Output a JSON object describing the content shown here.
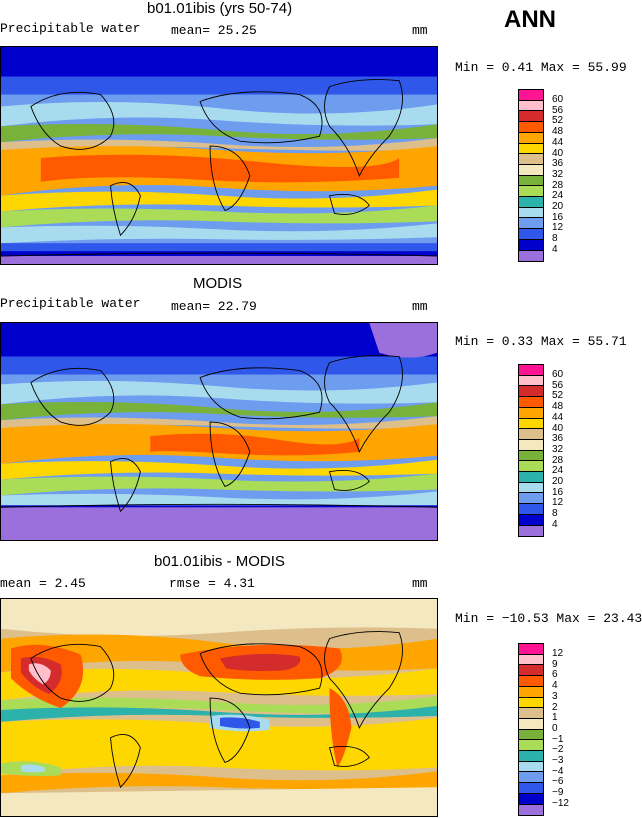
{
  "season": "ANN",
  "colors": {
    "c_lt4": "#9b6fdc",
    "c4_8": "#0000cc",
    "c8_12": "#2f57ea",
    "c12_16": "#6e9df0",
    "c16_20": "#a9dbef",
    "c20_24": "#2cb2aa",
    "c24_28": "#aadc57",
    "c28_32": "#78b23a",
    "c32_36": "#f3e8bf",
    "c36_40": "#ddbf8c",
    "c40_44": "#ffd700",
    "c44_48": "#ffa500",
    "c48_52": "#ff5a00",
    "c52_56": "#d42c2c",
    "c56_60": "#ffc0cb",
    "c_gt60": "#ff1493"
  },
  "panels": [
    {
      "title": "b01.01ibis (yrs 50-74)",
      "left_label": "Precipitable water",
      "center_label": "mean=  25.25",
      "units": "mm",
      "minmax": "Min =    0.41 Max =   55.99",
      "levels": [
        "60",
        "56",
        "52",
        "48",
        "44",
        "40",
        "36",
        "32",
        "28",
        "24",
        "20",
        "16",
        "12",
        "8",
        "4"
      ]
    },
    {
      "title": "MODIS",
      "left_label": "Precipitable water",
      "center_label": "mean=  22.79",
      "units": "mm",
      "minmax": "Min =    0.33 Max =   55.71",
      "levels": [
        "60",
        "56",
        "52",
        "48",
        "44",
        "40",
        "36",
        "32",
        "28",
        "24",
        "20",
        "16",
        "12",
        "8",
        "4"
      ]
    },
    {
      "title": "b01.01ibis - MODIS",
      "left_label": "mean =    2.45",
      "center_label": "rmse =    4.31",
      "units": "mm",
      "minmax": "Min = −10.53 Max =   23.43",
      "levels": [
        "12",
        "9",
        "6",
        "4",
        "3",
        "2",
        "1",
        "0",
        "−1",
        "−2",
        "−3",
        "−4",
        "−6",
        "−9",
        "−12"
      ]
    }
  ],
  "chart_data": [
    {
      "type": "heatmap",
      "title": "b01.01ibis (yrs 50-74)",
      "variable": "Precipitable water",
      "units": "mm",
      "mean": 25.25,
      "min": 0.41,
      "max": 55.99,
      "contour_levels": [
        4,
        8,
        12,
        16,
        20,
        24,
        28,
        32,
        36,
        40,
        44,
        48,
        52,
        56,
        60
      ]
    },
    {
      "type": "heatmap",
      "title": "MODIS",
      "variable": "Precipitable water",
      "units": "mm",
      "mean": 22.79,
      "min": 0.33,
      "max": 55.71,
      "contour_levels": [
        4,
        8,
        12,
        16,
        20,
        24,
        28,
        32,
        36,
        40,
        44,
        48,
        52,
        56,
        60
      ]
    },
    {
      "type": "heatmap",
      "title": "b01.01ibis - MODIS",
      "units": "mm",
      "mean": 2.45,
      "rmse": 4.31,
      "min": -10.53,
      "max": 23.43,
      "contour_levels": [
        -12,
        -9,
        -6,
        -4,
        -3,
        -2,
        -1,
        0,
        1,
        2,
        3,
        4,
        6,
        9,
        12
      ]
    }
  ]
}
